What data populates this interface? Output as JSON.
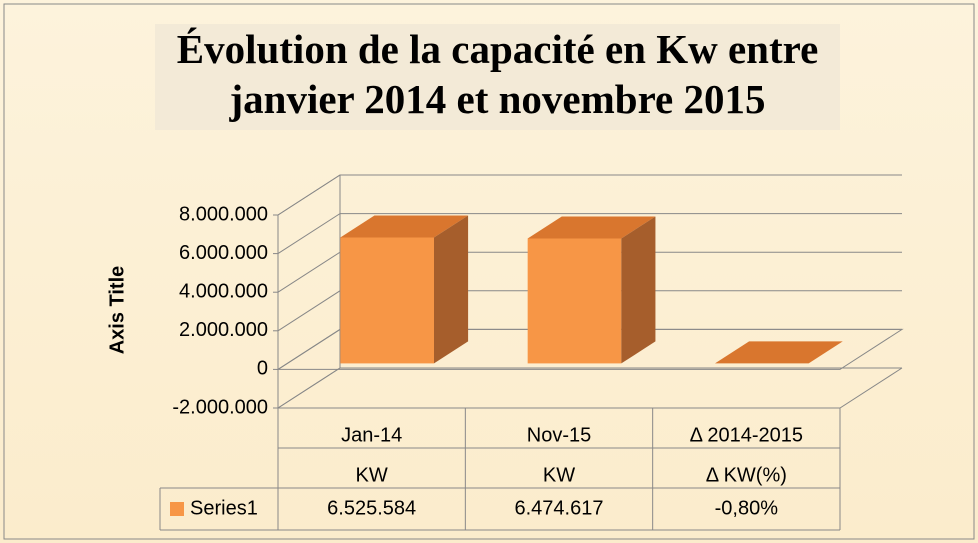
{
  "chart_data": {
    "type": "bar3d",
    "title": "Évolution de la capacité en Kw entre janvier 2014 et novembre 2015",
    "y_axis_label": "Axis Title",
    "categories": [
      "Jan-14",
      "Nov-15",
      "Δ 2014-2015"
    ],
    "category_sublabels": [
      "KW",
      "KW",
      "Δ KW(%)"
    ],
    "series": [
      {
        "name": "Series1",
        "color": "#f79646",
        "values": [
          6525584,
          6474617,
          -0.008
        ],
        "value_labels": [
          "6.525.584",
          "6.474.617",
          "-0,80%"
        ]
      }
    ],
    "ylim": [
      -2000000,
      8000000
    ],
    "yticks": [
      {
        "value": -2000000,
        "label": "-2.000.000"
      },
      0,
      {
        "value": 2000000,
        "label": "2.000.000"
      },
      {
        "value": 4000000,
        "label": "4.000.000"
      },
      {
        "value": 6000000,
        "label": "6.000.000"
      },
      {
        "value": 8000000,
        "label": "8.000.000"
      }
    ],
    "grid": true,
    "data_table": true
  }
}
